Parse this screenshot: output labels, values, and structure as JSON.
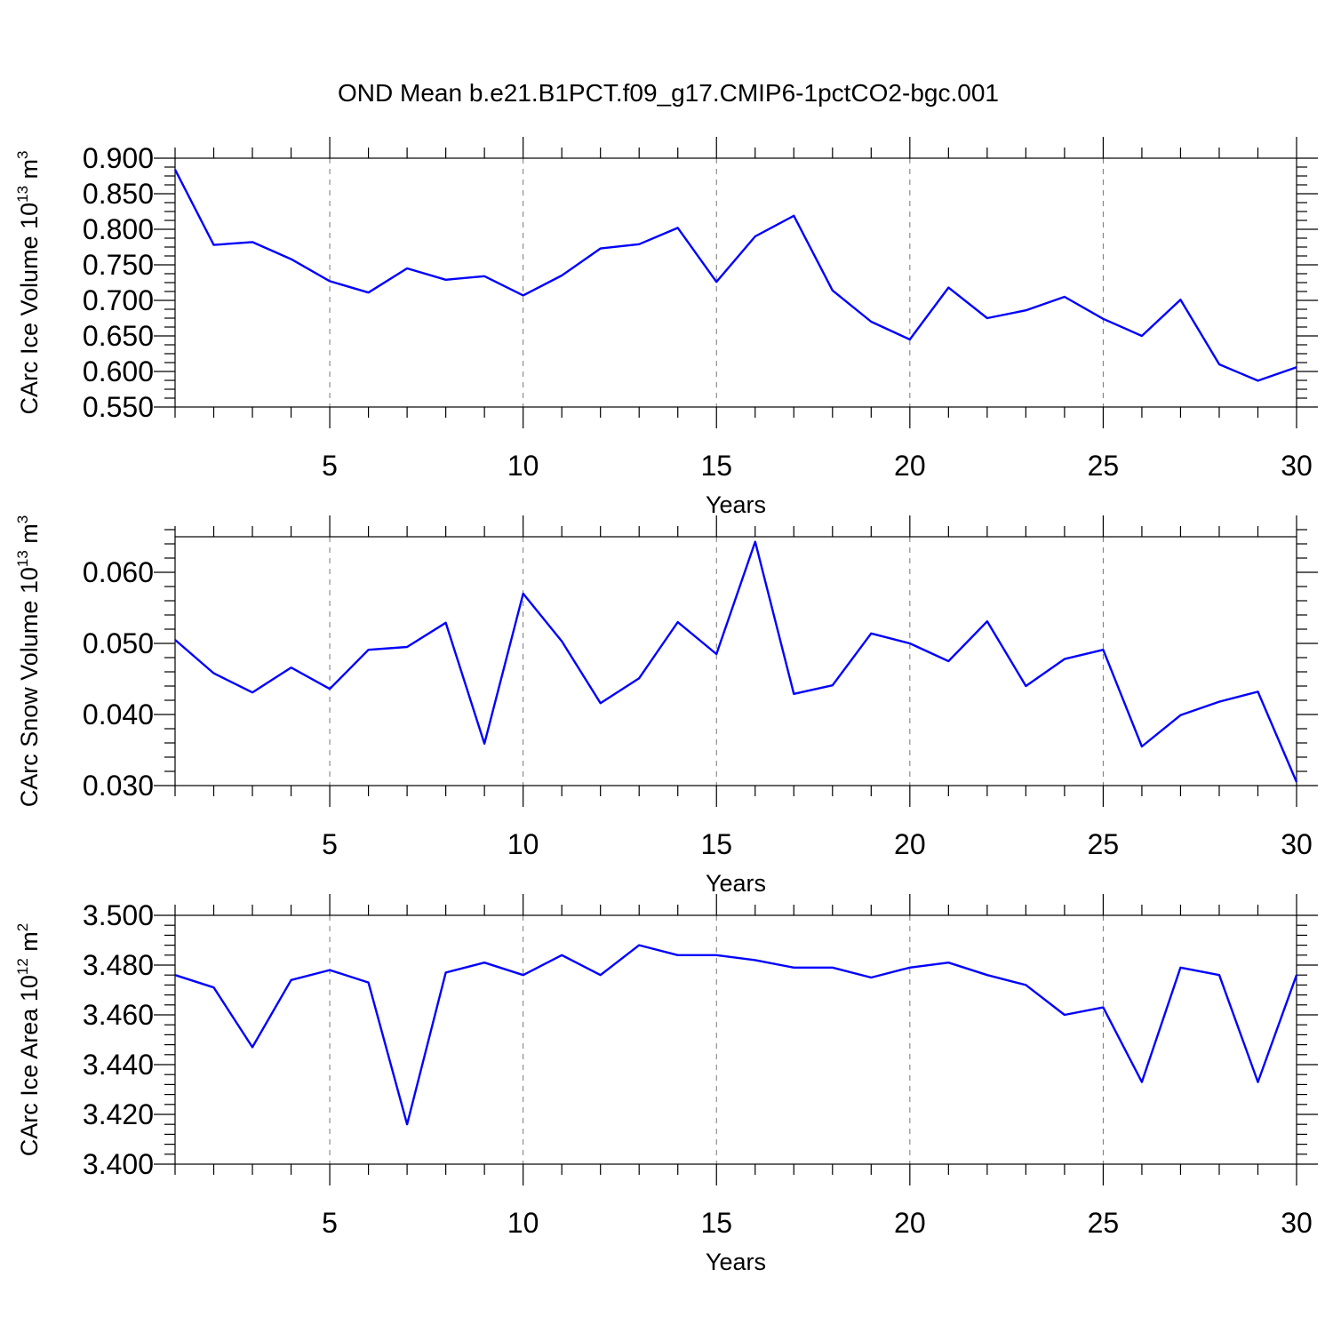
{
  "title": "OND Mean b.e21.B1PCT.f09_g17.CMIP6-1pctCO2-bgc.001",
  "colors": {
    "line": "#0000ff",
    "axis": "#000000",
    "grid": "#777777"
  },
  "chart_data": [
    {
      "type": "line",
      "ylabel": {
        "main": "CArc Ice Volume 10",
        "exp": "13",
        "unit": " m",
        "unit_exp": "3"
      },
      "xlabel": "Years",
      "xlim": [
        1,
        30
      ],
      "ylim": [
        0.55,
        0.9
      ],
      "xticks": [
        5,
        10,
        15,
        20,
        25,
        30
      ],
      "xtick_labels": [
        "5",
        "10",
        "15",
        "20",
        "25",
        "30"
      ],
      "yticks": [
        0.55,
        0.6,
        0.65,
        0.7,
        0.75,
        0.8,
        0.85,
        0.9
      ],
      "ytick_labels": [
        "0.550",
        "0.600",
        "0.650",
        "0.700",
        "0.750",
        "0.800",
        "0.850",
        "0.900"
      ],
      "ymin_step": 0.0125,
      "grid": "vertical-dashed",
      "x": [
        1,
        2,
        3,
        4,
        5,
        6,
        7,
        8,
        9,
        10,
        11,
        12,
        13,
        14,
        15,
        16,
        17,
        18,
        19,
        20,
        21,
        22,
        23,
        24,
        25,
        26,
        27,
        28,
        29,
        30
      ],
      "values": [
        0.884,
        0.778,
        0.782,
        0.758,
        0.727,
        0.711,
        0.745,
        0.729,
        0.734,
        0.707,
        0.735,
        0.773,
        0.779,
        0.802,
        0.726,
        0.79,
        0.819,
        0.714,
        0.67,
        0.645,
        0.718,
        0.675,
        0.686,
        0.705,
        0.674,
        0.65,
        0.701,
        0.61,
        0.587,
        0.606
      ]
    },
    {
      "type": "line",
      "ylabel": {
        "main": "CArc Snow Volume 10",
        "exp": "13",
        "unit": " m",
        "unit_exp": "3"
      },
      "xlabel": "Years",
      "xlim": [
        1,
        30
      ],
      "ylim": [
        0.03,
        0.065
      ],
      "xticks": [
        5,
        10,
        15,
        20,
        25,
        30
      ],
      "xtick_labels": [
        "5",
        "10",
        "15",
        "20",
        "25",
        "30"
      ],
      "yticks": [
        0.03,
        0.04,
        0.05,
        0.06
      ],
      "ytick_labels": [
        "0.030",
        "0.040",
        "0.050",
        "0.060"
      ],
      "ymin_step": 0.002,
      "grid": "vertical-dashed",
      "x": [
        1,
        2,
        3,
        4,
        5,
        6,
        7,
        8,
        9,
        10,
        11,
        12,
        13,
        14,
        15,
        16,
        17,
        18,
        19,
        20,
        21,
        22,
        23,
        24,
        25,
        26,
        27,
        28,
        29,
        30
      ],
      "values": [
        0.0505,
        0.0458,
        0.0431,
        0.0466,
        0.0436,
        0.0491,
        0.0495,
        0.0529,
        0.0359,
        0.057,
        0.0503,
        0.0416,
        0.0451,
        0.053,
        0.0485,
        0.0643,
        0.0429,
        0.0441,
        0.0514,
        0.05,
        0.0475,
        0.0531,
        0.044,
        0.0478,
        0.0491,
        0.0355,
        0.0399,
        0.0418,
        0.0432,
        0.0305
      ]
    },
    {
      "type": "line",
      "ylabel": {
        "main": "CArc Ice Area 10",
        "exp": "12",
        "unit": " m",
        "unit_exp": "2"
      },
      "xlabel": "Years",
      "xlim": [
        1,
        30
      ],
      "ylim": [
        3.4,
        3.5
      ],
      "xticks": [
        5,
        10,
        15,
        20,
        25,
        30
      ],
      "xtick_labels": [
        "5",
        "10",
        "15",
        "20",
        "25",
        "30"
      ],
      "yticks": [
        3.4,
        3.42,
        3.44,
        3.46,
        3.48,
        3.5
      ],
      "ytick_labels": [
        "3.400",
        "3.420",
        "3.440",
        "3.460",
        "3.480",
        "3.500"
      ],
      "ymin_step": 0.004,
      "grid": "vertical-dashed",
      "x": [
        1,
        2,
        3,
        4,
        5,
        6,
        7,
        8,
        9,
        10,
        11,
        12,
        13,
        14,
        15,
        16,
        17,
        18,
        19,
        20,
        21,
        22,
        23,
        24,
        25,
        26,
        27,
        28,
        29,
        30
      ],
      "values": [
        3.476,
        3.471,
        3.447,
        3.474,
        3.478,
        3.473,
        3.416,
        3.477,
        3.481,
        3.476,
        3.484,
        3.476,
        3.488,
        3.484,
        3.484,
        3.482,
        3.479,
        3.479,
        3.475,
        3.479,
        3.481,
        3.476,
        3.472,
        3.46,
        3.463,
        3.433,
        3.479,
        3.476,
        3.433,
        3.476
      ]
    }
  ]
}
